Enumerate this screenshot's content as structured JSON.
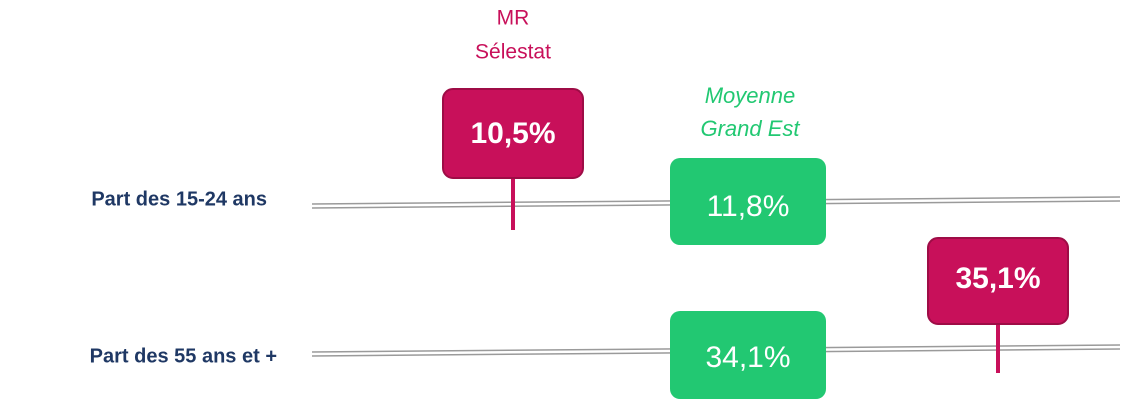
{
  "local_label": [
    "MR",
    "Sélestat"
  ],
  "average_label": [
    "Moyenne",
    "Grand Est"
  ],
  "rows": [
    {
      "label": "Part des 15-24 ans",
      "local": "10,5%",
      "average": "11,8%"
    },
    {
      "label": "Part des 55 ans et +",
      "local": "35,1%",
      "average": "34,1%"
    }
  ]
}
